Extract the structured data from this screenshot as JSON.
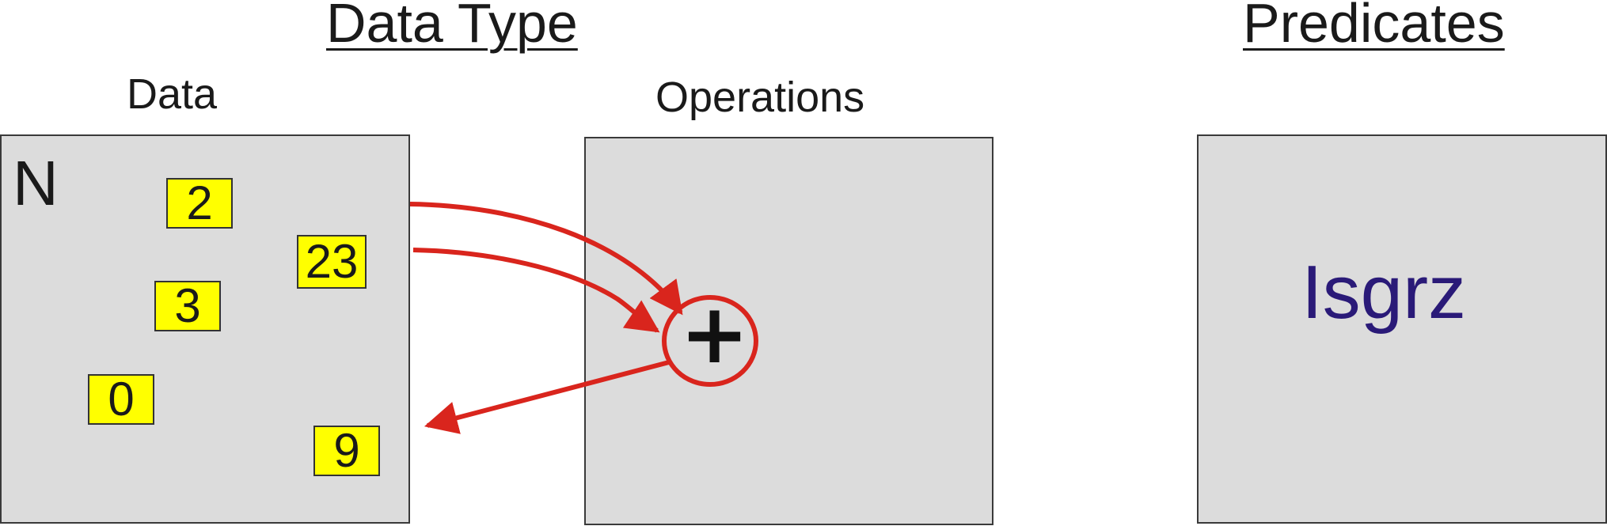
{
  "headings": {
    "data_type": "Data Type",
    "predicates": "Predicates"
  },
  "labels": {
    "data": "Data",
    "operations": "Operations"
  },
  "data_panel": {
    "set_symbol": "N",
    "elements": [
      "2",
      "23",
      "3",
      "0",
      "9"
    ]
  },
  "operations_panel": {
    "operator": "+"
  },
  "predicates_panel": {
    "name": "Isgrz"
  },
  "colors": {
    "panel": "#dcdcdc",
    "chip": "#ffff00",
    "arrow": "#d9251d",
    "predicate_text": "#2a1a78"
  }
}
